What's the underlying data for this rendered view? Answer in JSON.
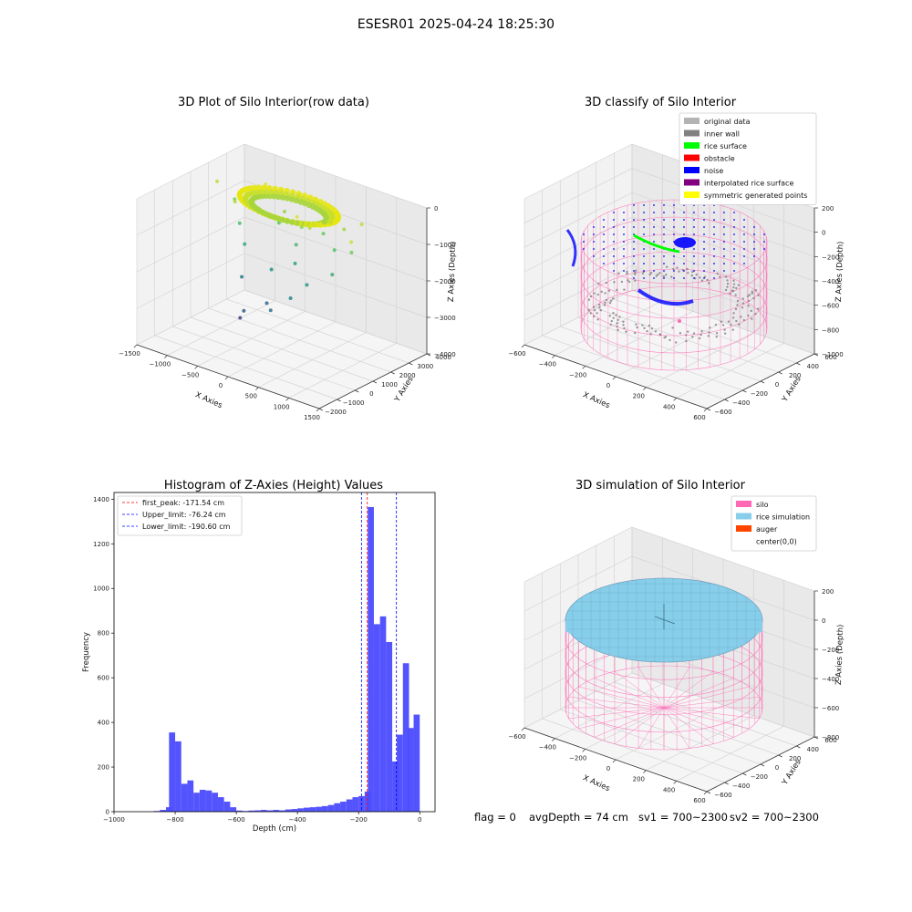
{
  "figure": {
    "suptitle": "ESESR01 2025-04-24 18:25:30",
    "status": {
      "flag": "flag = 0",
      "avg_depth": "avgDepth = 74 cm",
      "sv1": "sv1 = 700~2300",
      "sv2": "sv2 = 700~2300"
    }
  },
  "colors": {
    "original_data": "#b3b3b3",
    "inner_wall": "#808080",
    "rice_surface": "#00ff00",
    "obstacle": "#ff0000",
    "noise": "#0000ff",
    "interpolated_rice_surface": "#800080",
    "symmetric_generated_points": "#ffff00",
    "silo": "#ff69b4",
    "rice_simulation": "#87ceeb",
    "auger": "#ff4500",
    "hist_bar": "#4b4bff",
    "first_peak_line": "#ff0000",
    "limit_line": "#0000ff"
  },
  "chart_data": [
    {
      "type": "scatter",
      "projection": "3d",
      "title": "3D Plot of Silo Interior(row data)",
      "xlabel": "X Axies",
      "ylabel": "Y Axies",
      "zlabel": "Z Axies (Depth)",
      "xticks": [
        "−1500",
        "−1000",
        "−500",
        "0",
        "500",
        "1000",
        "1500"
      ],
      "yticks": [
        "−2000",
        "−1000",
        "0",
        "1000",
        "2000",
        "3000",
        "4000"
      ],
      "zticks": [
        "0",
        "−1000",
        "−2000",
        "−3000",
        "−4000"
      ],
      "xlim": [
        -1500,
        1500
      ],
      "ylim": [
        -2000,
        4000
      ],
      "zlim": [
        -4500,
        0
      ],
      "colormap": "viridis",
      "points": [
        {
          "x": -450,
          "y": 1800,
          "z": -3600
        },
        {
          "x": -300,
          "y": 2100,
          "z": -3200
        },
        {
          "x": -100,
          "y": 1500,
          "z": -3000
        },
        {
          "x": 200,
          "y": 2300,
          "z": -2800
        },
        {
          "x": -600,
          "y": 1200,
          "z": -2600
        },
        {
          "x": 350,
          "y": 1700,
          "z": -2500
        },
        {
          "x": -200,
          "y": 900,
          "z": -2200
        },
        {
          "x": 500,
          "y": 1300,
          "z": -2100
        },
        {
          "x": 100,
          "y": 600,
          "z": -1900
        },
        {
          "x": -700,
          "y": 700,
          "z": -1800
        },
        {
          "x": 800,
          "y": 900,
          "z": -1700
        },
        {
          "x": 0,
          "y": 200,
          "z": -1500
        },
        {
          "x": -900,
          "y": 300,
          "z": -1400
        },
        {
          "x": 600,
          "y": 100,
          "z": -1300
        },
        {
          "x": -400,
          "y": -200,
          "z": -1200
        },
        {
          "x": 300,
          "y": -300,
          "z": -1100
        },
        {
          "x": 1000,
          "y": 500,
          "z": -1000
        },
        {
          "x": -1100,
          "y": -100,
          "z": -900
        },
        {
          "x": 150,
          "y": 400,
          "z": -800
        },
        {
          "x": -250,
          "y": 0,
          "z": -700
        },
        {
          "x": 700,
          "y": -100,
          "z": -650
        },
        {
          "x": -500,
          "y": 600,
          "z": -600
        },
        {
          "x": 400,
          "y": 800,
          "z": -550
        },
        {
          "x": -800,
          "y": 900,
          "z": -500
        },
        {
          "x": 900,
          "y": -400,
          "z": -450
        },
        {
          "x": -1300,
          "y": 200,
          "z": -400
        },
        {
          "x": 1200,
          "y": 1200,
          "z": -350
        },
        {
          "x": -150,
          "y": -500,
          "z": -300
        },
        {
          "x": 250,
          "y": 1000,
          "z": -250
        },
        {
          "x": -650,
          "y": -300,
          "z": -200
        }
      ],
      "ring_surface": {
        "x_center": 0,
        "y_center": 600,
        "radius": 750,
        "z": -200
      }
    },
    {
      "type": "scatter",
      "projection": "3d",
      "title": "3D classify of Silo Interior",
      "xlabel": "X Axies",
      "ylabel": "Y Axies",
      "zlabel": "Z Axies (Depth)",
      "xticks": [
        "−600",
        "−400",
        "−200",
        "0",
        "200",
        "400",
        "600"
      ],
      "yticks": [
        "−600",
        "−400",
        "−200",
        "0",
        "200",
        "400",
        "600"
      ],
      "zticks": [
        "200",
        "0",
        "−200",
        "−400",
        "−600",
        "−800",
        "−1000"
      ],
      "xlim": [
        -650,
        650
      ],
      "ylim": [
        -650,
        650
      ],
      "zlim": [
        -1000,
        200
      ],
      "legend": {
        "position": "upper right",
        "items": [
          {
            "label": "original data",
            "color": "#b3b3b3"
          },
          {
            "label": "inner wall",
            "color": "#808080"
          },
          {
            "label": "rice surface",
            "color": "#00ff00"
          },
          {
            "label": "obstacle",
            "color": "#ff0000"
          },
          {
            "label": "noise",
            "color": "#0000ff"
          },
          {
            "label": "interpolated rice surface",
            "color": "#800080"
          },
          {
            "label": "symmetric generated points",
            "color": "#ffff00"
          }
        ]
      },
      "cylinder": {
        "radius": 600,
        "z_top": 0,
        "z_bottom": -1000
      }
    },
    {
      "type": "bar",
      "title": "Histogram of Z-Axies (Height) Values",
      "xlabel": "Depth (cm)",
      "ylabel": "Frequency",
      "xlim": [
        -1000,
        50
      ],
      "ylim": [
        0,
        1430
      ],
      "xticks": [
        -1000,
        -800,
        -600,
        -400,
        -200,
        0
      ],
      "yticks": [
        0,
        200,
        400,
        600,
        800,
        1000,
        1200,
        1400
      ],
      "bin_width": 20,
      "bins": [
        {
          "start": -870,
          "count": 3
        },
        {
          "start": -850,
          "count": 8
        },
        {
          "start": -830,
          "count": 20
        },
        {
          "start": -820,
          "count": 355
        },
        {
          "start": -800,
          "count": 315
        },
        {
          "start": -780,
          "count": 125
        },
        {
          "start": -760,
          "count": 140
        },
        {
          "start": -740,
          "count": 85
        },
        {
          "start": -720,
          "count": 98
        },
        {
          "start": -700,
          "count": 95
        },
        {
          "start": -680,
          "count": 85
        },
        {
          "start": -660,
          "count": 65
        },
        {
          "start": -640,
          "count": 45
        },
        {
          "start": -620,
          "count": 20
        },
        {
          "start": -600,
          "count": 5
        },
        {
          "start": -580,
          "count": 3
        },
        {
          "start": -560,
          "count": 5
        },
        {
          "start": -540,
          "count": 6
        },
        {
          "start": -520,
          "count": 8
        },
        {
          "start": -500,
          "count": 6
        },
        {
          "start": -480,
          "count": 8
        },
        {
          "start": -460,
          "count": 6
        },
        {
          "start": -440,
          "count": 10
        },
        {
          "start": -420,
          "count": 12
        },
        {
          "start": -400,
          "count": 15
        },
        {
          "start": -380,
          "count": 18
        },
        {
          "start": -360,
          "count": 20
        },
        {
          "start": -340,
          "count": 22
        },
        {
          "start": -320,
          "count": 25
        },
        {
          "start": -300,
          "count": 30
        },
        {
          "start": -280,
          "count": 38
        },
        {
          "start": -260,
          "count": 45
        },
        {
          "start": -240,
          "count": 55
        },
        {
          "start": -220,
          "count": 65
        },
        {
          "start": -200,
          "count": 70
        },
        {
          "start": -180,
          "count": 90
        },
        {
          "start": -170,
          "count": 1365
        },
        {
          "start": -150,
          "count": 840
        },
        {
          "start": -130,
          "count": 875
        },
        {
          "start": -110,
          "count": 760
        },
        {
          "start": -90,
          "count": 225
        },
        {
          "start": -75,
          "count": 345
        },
        {
          "start": -55,
          "count": 665
        },
        {
          "start": -40,
          "count": 375
        },
        {
          "start": -20,
          "count": 435
        }
      ],
      "vlines": [
        {
          "x": -171.54,
          "label": "first_peak: -171.54 cm",
          "color": "#ff0000"
        },
        {
          "x": -76.24,
          "label": "Upper_limit: -76.24 cm",
          "color": "#0000ff"
        },
        {
          "x": -190.6,
          "label": "Lower_limit: -190.60 cm",
          "color": "#0000ff"
        }
      ],
      "legend": {
        "position": "upper left"
      }
    },
    {
      "type": "surface",
      "projection": "3d",
      "title": "3D simulation of Silo Interior",
      "xlabel": "X Axies",
      "ylabel": "Y Axies",
      "zlabel": "Z Axies (Depth)",
      "xticks": [
        "−600",
        "−400",
        "−200",
        "0",
        "200",
        "400",
        "600"
      ],
      "yticks": [
        "−600",
        "−400",
        "−200",
        "0",
        "200",
        "400",
        "600"
      ],
      "zticks": [
        "200",
        "0",
        "−200",
        "−400",
        "−600",
        "−800"
      ],
      "xlim": [
        -650,
        650
      ],
      "ylim": [
        -650,
        650
      ],
      "zlim": [
        -900,
        300
      ],
      "legend": {
        "position": "upper right",
        "items": [
          {
            "label": "silo",
            "color": "#ff69b4"
          },
          {
            "label": "rice simulation",
            "color": "#87ceeb"
          },
          {
            "label": "auger",
            "color": "#ff4500"
          },
          {
            "label": "center(0,0)",
            "color": ""
          }
        ]
      },
      "cylinder": {
        "radius": 600,
        "z_top": 74,
        "z_bottom": -900
      }
    }
  ]
}
